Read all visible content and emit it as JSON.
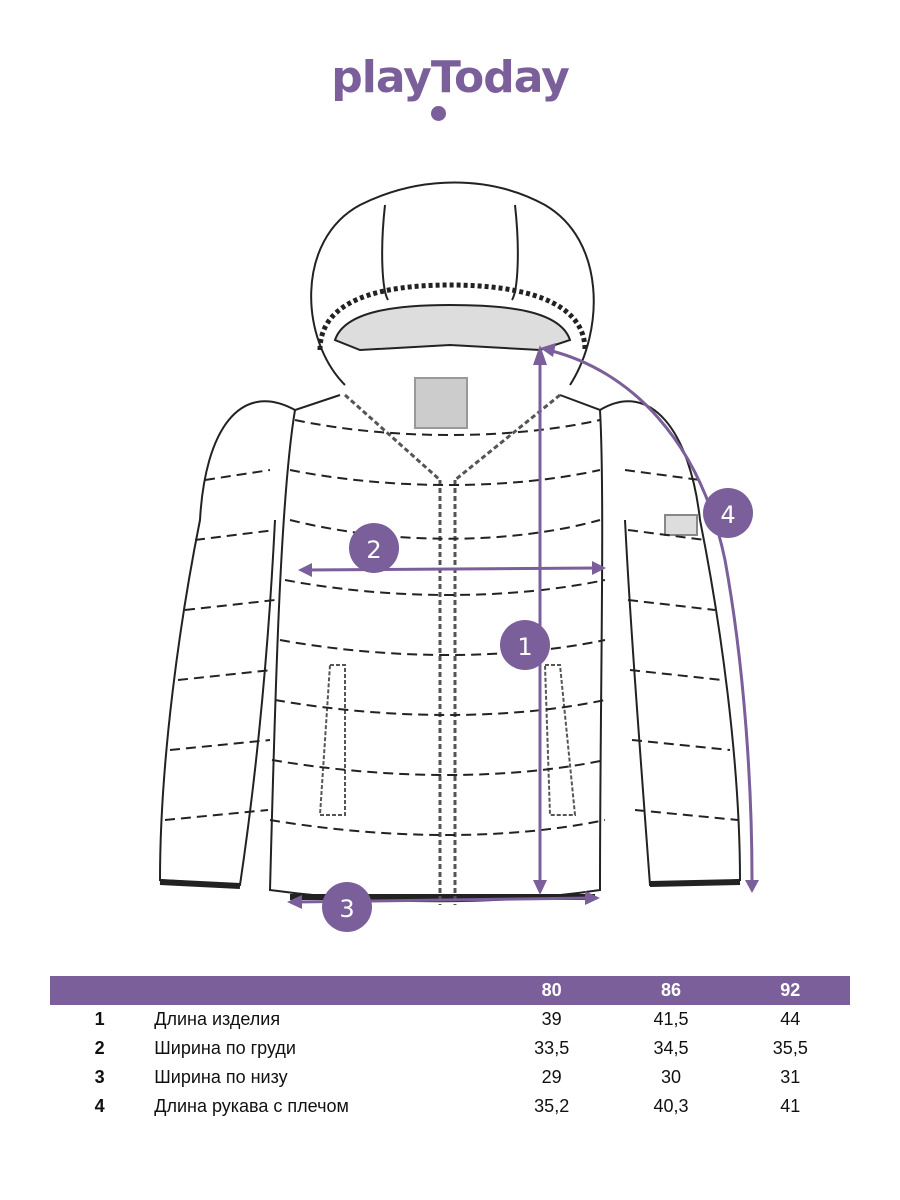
{
  "brand": {
    "logo_text": "playToday",
    "color": "#7b5f9b"
  },
  "diagram": {
    "markers": [
      {
        "label": "1",
        "measure": "Длина изделия"
      },
      {
        "label": "2",
        "measure": "Ширина по груди"
      },
      {
        "label": "3",
        "measure": "Ширина по низу"
      },
      {
        "label": "4",
        "measure": "Длина рукава с плечом"
      }
    ]
  },
  "size_table": {
    "header_color": "#7b5f9b",
    "sizes": [
      "80",
      "86",
      "92"
    ],
    "rows": [
      {
        "num": "1",
        "name": "Длина изделия",
        "values": [
          "39",
          "41,5",
          "44"
        ]
      },
      {
        "num": "2",
        "name": "Ширина по груди",
        "values": [
          "33,5",
          "34,5",
          "35,5"
        ]
      },
      {
        "num": "3",
        "name": "Ширина по низу",
        "values": [
          "29",
          "30",
          "31"
        ]
      },
      {
        "num": "4",
        "name": "Длина рукава с плечом",
        "values": [
          "35,2",
          "40,3",
          "41"
        ]
      }
    ]
  }
}
